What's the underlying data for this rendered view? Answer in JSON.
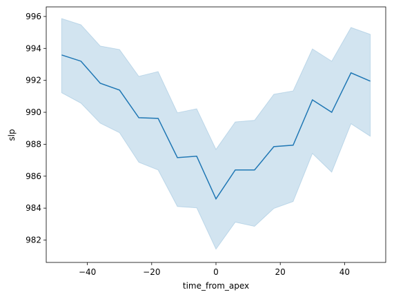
{
  "chart_data": {
    "type": "line",
    "x_label": "time_from_apex",
    "y_label": "slp",
    "x": [
      -48,
      -42,
      -36,
      -30,
      -24,
      -18,
      -12,
      -6,
      0,
      6,
      12,
      18,
      24,
      30,
      36,
      42,
      48
    ],
    "series": [
      {
        "color": "#1f77b4",
        "values": [
          993.59,
          993.2,
          991.82,
          991.39,
          989.66,
          989.62,
          987.16,
          987.25,
          984.58,
          986.39,
          986.39,
          987.85,
          987.94,
          990.78,
          990.0,
          992.47,
          991.95
        ],
        "upper": [
          995.87,
          995.48,
          994.15,
          993.93,
          992.25,
          992.55,
          989.97,
          990.22,
          987.68,
          989.4,
          989.5,
          991.13,
          991.34,
          993.97,
          993.2,
          995.31,
          994.88
        ],
        "lower": [
          991.22,
          990.57,
          989.32,
          988.72,
          986.87,
          986.39,
          984.1,
          984.02,
          981.43,
          983.12,
          982.86,
          983.98,
          984.41,
          987.42,
          986.25,
          989.28,
          988.5
        ]
      }
    ],
    "xlim": [
      -52.8,
      52.8
    ],
    "xticks": [
      {
        "value": -40,
        "label": "−40"
      },
      {
        "value": -20,
        "label": "−20"
      },
      0,
      20,
      40
    ],
    "ylim": [
      980.6,
      996.6
    ],
    "yticks": [
      982,
      984,
      986,
      988,
      990,
      992,
      994,
      996
    ],
    "grid": false
  }
}
